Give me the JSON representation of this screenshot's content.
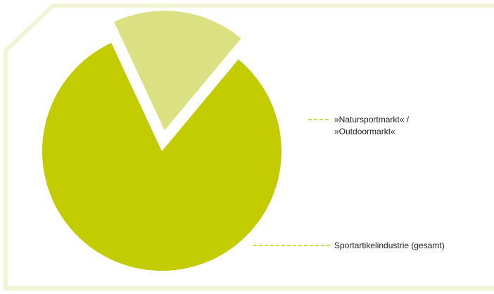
{
  "colors": {
    "frame": "#f2f5d5",
    "main_slice": "#c2cc00",
    "small_slice": "#dbe183",
    "leader": "#c2cc00"
  },
  "chart_data": {
    "type": "pie",
    "title": "",
    "slices": [
      {
        "label_lines": [
          "»Natursportmarkt« /",
          "»Outdoormarkt«"
        ],
        "value": 18,
        "exploded": true
      },
      {
        "label_lines": [
          "Sportartikelindustrie (gesamt)"
        ],
        "value": 82,
        "exploded": false
      }
    ],
    "legend": "none",
    "labels": "leader-lines-right"
  }
}
